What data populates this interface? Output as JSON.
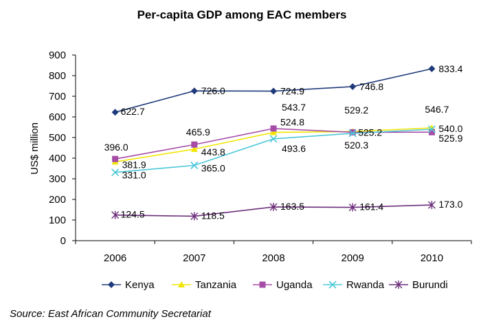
{
  "chart_data": {
    "type": "line",
    "title": "Per-capita GDP among EAC members",
    "ylabel": "US$ million",
    "xlabel": "",
    "x": [
      "2006",
      "2007",
      "2008",
      "2009",
      "2010"
    ],
    "ylim": [
      0,
      900
    ],
    "yticks": [
      0,
      100,
      200,
      300,
      400,
      500,
      600,
      700,
      800,
      900
    ],
    "grid": false,
    "legend_position": "bottom",
    "series": [
      {
        "name": "Kenya",
        "color": "#1F3A7A",
        "marker": "diamond",
        "values": [
          622.7,
          726.0,
          724.9,
          746.8,
          833.4
        ],
        "labels": [
          "622.7",
          "726.0",
          "724.9",
          "746.8",
          "833.4"
        ]
      },
      {
        "name": "Tanzania",
        "color": "#F2E500",
        "marker": "triangle",
        "values": [
          381.9,
          443.8,
          524.8,
          529.2,
          546.7
        ],
        "labels": [
          "381.9",
          "443.8",
          "524.8",
          "529.2",
          "546.7"
        ]
      },
      {
        "name": "Uganda",
        "color": "#A64CA6",
        "marker": "square",
        "values": [
          396.0,
          465.9,
          543.7,
          525.2,
          525.9
        ],
        "labels": [
          "396.0",
          "465.9",
          "543.7",
          "525.2",
          "525.9"
        ]
      },
      {
        "name": "Rwanda",
        "color": "#4CC8D8",
        "marker": "x",
        "values": [
          331.0,
          365.0,
          493.6,
          520.3,
          540.0
        ],
        "labels": [
          "331.0",
          "365.0",
          "493.6",
          "520.3",
          "540.0"
        ]
      },
      {
        "name": "Burundi",
        "color": "#6B2E7A",
        "marker": "star",
        "values": [
          124.5,
          118.5,
          163.5,
          161.4,
          173.0
        ],
        "labels": [
          "124.5",
          "118.5",
          "163.5",
          "161.4",
          "173.0"
        ]
      }
    ]
  },
  "source": "Source: East African Community Secretariat"
}
